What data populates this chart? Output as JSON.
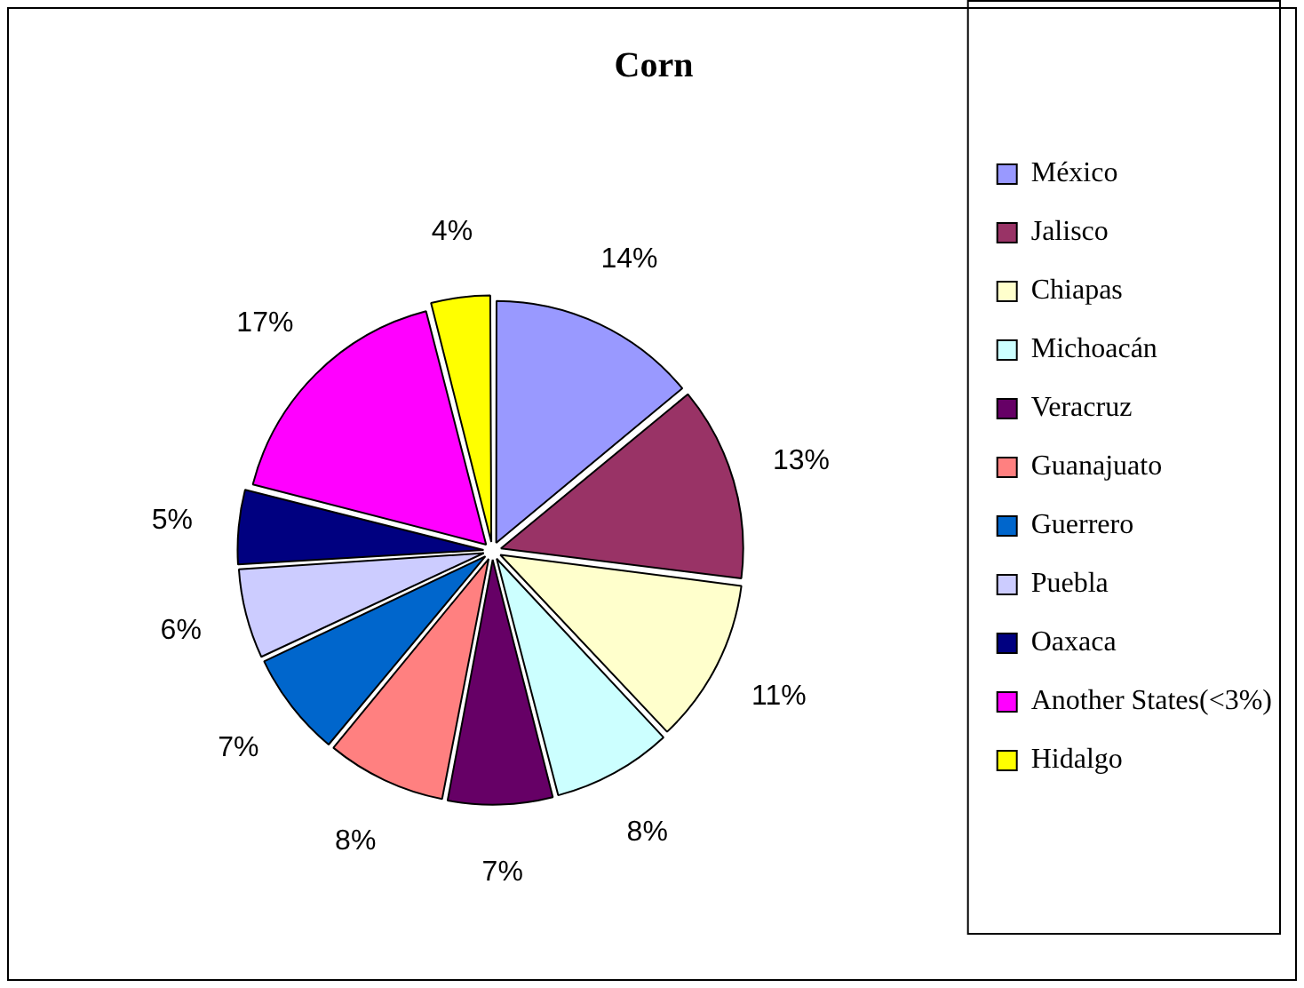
{
  "chart_data": {
    "type": "pie",
    "title": "Corn",
    "categories": [
      "México",
      "Jalisco",
      "Chiapas",
      "Michoacán",
      "Veracruz",
      "Guanajuato",
      "Guerrero",
      "Puebla",
      "Oaxaca",
      "Another States(<3%)",
      "Hidalgo"
    ],
    "values": [
      14,
      13,
      11,
      8,
      7,
      8,
      7,
      6,
      5,
      17,
      4
    ],
    "value_labels": [
      "14%",
      "13%",
      "11%",
      "8%",
      "7%",
      "8%",
      "7%",
      "6%",
      "5%",
      "17%",
      "4%"
    ],
    "colors": [
      "#9999ff",
      "#993366",
      "#ffffcc",
      "#ccffff",
      "#660066",
      "#ff8080",
      "#0066cc",
      "#ccccff",
      "#000080",
      "#ff00ff",
      "#ffff00"
    ],
    "legend": "right"
  }
}
